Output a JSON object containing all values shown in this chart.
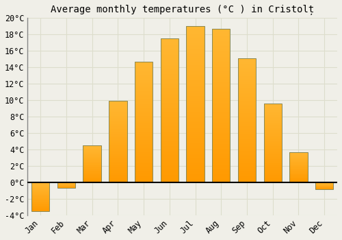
{
  "title": "Average monthly temperatures (°C ) in Cristolț",
  "months": [
    "Jan",
    "Feb",
    "Mar",
    "Apr",
    "May",
    "Jun",
    "Jul",
    "Aug",
    "Sep",
    "Oct",
    "Nov",
    "Dec"
  ],
  "values": [
    -3.5,
    -0.7,
    4.5,
    9.9,
    14.7,
    17.5,
    19.0,
    18.7,
    15.1,
    9.6,
    3.7,
    -0.8
  ],
  "bar_color_top": "#FFB732",
  "bar_color_bottom": "#FF9900",
  "bar_edge_color": "#888855",
  "background_color": "#F0EFE8",
  "plot_bg_color": "#F0EFE8",
  "grid_color": "#DDDDCC",
  "ylim": [
    -4,
    20
  ],
  "yticks": [
    -4,
    -2,
    0,
    2,
    4,
    6,
    8,
    10,
    12,
    14,
    16,
    18,
    20
  ],
  "title_fontsize": 10,
  "tick_fontsize": 8.5,
  "figsize": [
    5.0,
    3.5
  ],
  "dpi": 100
}
